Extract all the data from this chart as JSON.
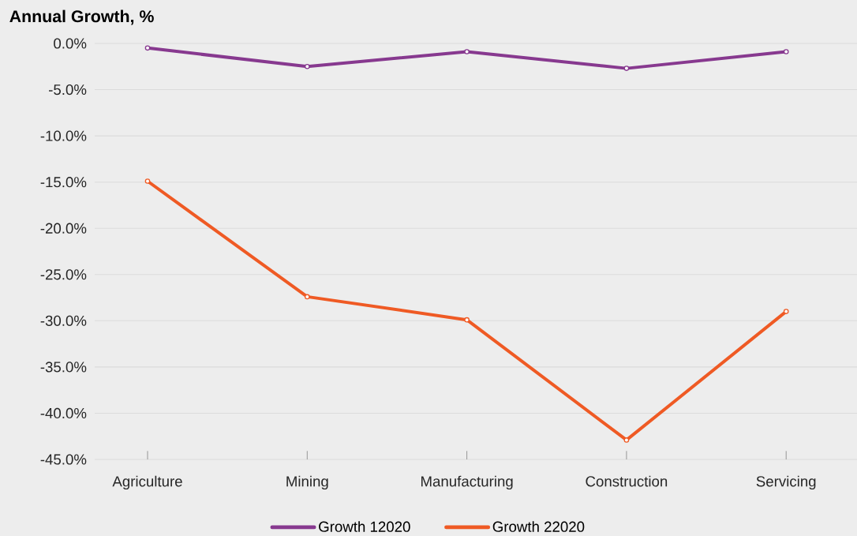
{
  "chart_data": {
    "type": "line",
    "title": "Annual Growth, %",
    "categories": [
      "Agriculture",
      "Mining",
      "Manufacturing",
      "Construction",
      "Servicing"
    ],
    "series": [
      {
        "name": "Growth 12020",
        "color": "#87398f",
        "values": [
          -0.5,
          -2.5,
          -0.9,
          -2.7,
          -0.9
        ]
      },
      {
        "name": "Growth 22020",
        "color": "#ef5a24",
        "values": [
          -14.9,
          -27.4,
          -29.9,
          -42.9,
          -29.0
        ]
      }
    ],
    "ylim": [
      -45,
      0
    ],
    "yticks": [
      {
        "value": 0,
        "label": "0.0%"
      },
      {
        "value": -5,
        "label": "-5.0%"
      },
      {
        "value": -10,
        "label": "-10.0%"
      },
      {
        "value": -15,
        "label": "-15.0%"
      },
      {
        "value": -20,
        "label": "-20.0%"
      },
      {
        "value": -25,
        "label": "-25.0%"
      },
      {
        "value": -30,
        "label": "-30.0%"
      },
      {
        "value": -35,
        "label": "-35.0%"
      },
      {
        "value": -40,
        "label": "-40.0%"
      },
      {
        "value": -45,
        "label": "-45.0%"
      }
    ],
    "grid": "y",
    "legend": "bottom",
    "marker": "circle",
    "line_style": "solid"
  }
}
